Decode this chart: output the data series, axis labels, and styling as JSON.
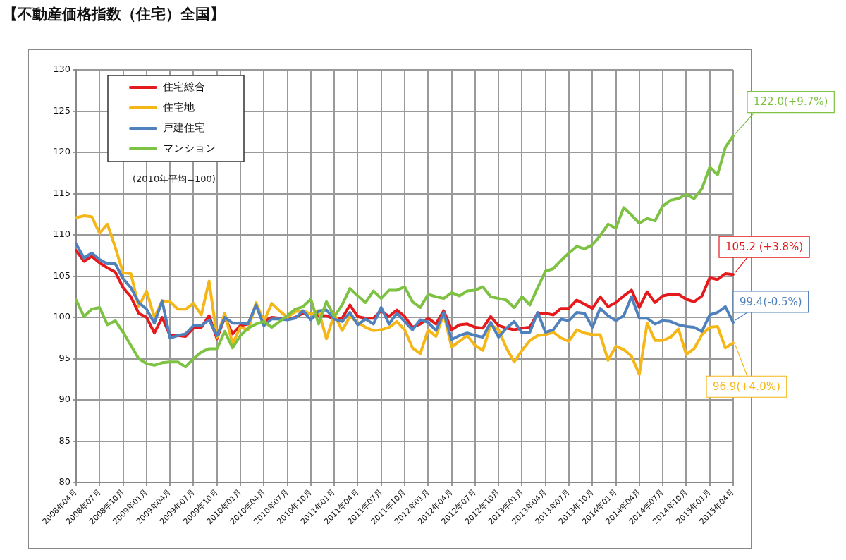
{
  "chart_data": {
    "type": "line",
    "title": "【不動産価格指数（住宅）全国】",
    "categories": [
      "2008年04月",
      null,
      null,
      "2008年07月",
      null,
      null,
      "2008年10月",
      null,
      null,
      "2009年01月",
      null,
      null,
      "2009年04月",
      null,
      null,
      "2009年07月",
      null,
      null,
      "2009年10月",
      null,
      null,
      "2010年01月",
      null,
      null,
      "2010年04月",
      null,
      null,
      "2010年07月",
      null,
      null,
      "2010年10月",
      null,
      null,
      "2011年01月",
      null,
      null,
      "2011年04月",
      null,
      null,
      "2011年07月",
      null,
      null,
      "2011年10月",
      null,
      null,
      "2012年01月",
      null,
      null,
      "2012年04月",
      null,
      null,
      "2012年07月",
      null,
      null,
      "2012年10月",
      null,
      null,
      "2013年01月",
      null,
      null,
      "2013年04月",
      null,
      null,
      "2013年07月",
      null,
      null,
      "2013年10月",
      null,
      null,
      "2014年01月",
      null,
      null,
      "2014年04月",
      null,
      null,
      "2014年07月",
      null,
      null,
      "2014年10月",
      null,
      null,
      "2015年01月",
      null,
      null,
      "2015年04月"
    ],
    "series": [
      {
        "name": "住宅総合",
        "color": "#e41a1c",
        "values": [
          108.1,
          106.8,
          107.4,
          106.6,
          106.0,
          105.5,
          103.6,
          102.5,
          100.5,
          100.0,
          98.1,
          100.0,
          97.8,
          97.8,
          97.7,
          98.7,
          98.8,
          100.2,
          97.4,
          100.0,
          98.0,
          99.0,
          99.2,
          101.5,
          99.5,
          100.0,
          99.9,
          99.8,
          100.0,
          100.5,
          100.5,
          100.2,
          100.2,
          99.8,
          99.9,
          101.5,
          100.1,
          99.9,
          99.9,
          100.8,
          100.1,
          100.9,
          100.1,
          98.8,
          99.2,
          99.9,
          99.2,
          100.8,
          98.5,
          99.1,
          99.2,
          98.8,
          98.7,
          100.1,
          99.0,
          98.7,
          98.5,
          98.7,
          98.8,
          100.5,
          100.5,
          100.3,
          101.1,
          101.1,
          102.1,
          101.6,
          101.1,
          102.5,
          101.3,
          101.8,
          102.6,
          103.3,
          101.2,
          103.1,
          101.8,
          102.6,
          102.8,
          102.8,
          102.2,
          101.9,
          102.6,
          104.8,
          104.6,
          105.3,
          105.2
        ]
      },
      {
        "name": "住宅地",
        "color": "#f5b718",
        "values": [
          112.1,
          112.3,
          112.2,
          110.2,
          111.3,
          108.5,
          105.4,
          105.3,
          101.3,
          103.2,
          100.0,
          102.0,
          101.9,
          101.0,
          101.0,
          101.7,
          100.3,
          104.4,
          97.6,
          100.5,
          96.8,
          98.8,
          98.5,
          101.8,
          99.5,
          101.7,
          100.8,
          100.0,
          100.7,
          100.8,
          100.4,
          100.8,
          97.4,
          100.4,
          98.4,
          100.1,
          99.4,
          98.8,
          98.4,
          98.5,
          98.8,
          99.5,
          98.5,
          96.3,
          95.6,
          98.5,
          97.7,
          100.4,
          96.4,
          97.1,
          97.8,
          96.6,
          96.0,
          99.1,
          98.5,
          96.3,
          94.6,
          96.0,
          97.2,
          97.8,
          97.9,
          98.2,
          97.5,
          97.1,
          98.5,
          98.1,
          97.9,
          97.9,
          94.8,
          96.5,
          96.1,
          95.3,
          93.1,
          99.3,
          97.2,
          97.2,
          97.6,
          98.6,
          95.5,
          96.2,
          97.9,
          98.8,
          98.9,
          96.3,
          96.9
        ]
      },
      {
        "name": "戸建住宅",
        "color": "#4f81bd",
        "values": [
          108.9,
          107.2,
          107.8,
          107.0,
          106.5,
          106.5,
          104.7,
          103.6,
          101.8,
          101.0,
          99.3,
          102.0,
          97.5,
          97.8,
          98.0,
          99.0,
          99.0,
          99.7,
          97.8,
          100.0,
          99.3,
          99.3,
          99.2,
          101.5,
          99.0,
          99.8,
          99.8,
          99.7,
          99.9,
          100.8,
          99.7,
          100.8,
          100.9,
          99.8,
          99.5,
          100.6,
          99.1,
          99.8,
          99.2,
          101.2,
          99.2,
          100.5,
          99.5,
          98.5,
          99.7,
          99.4,
          98.4,
          100.6,
          97.3,
          97.8,
          98.1,
          97.8,
          97.6,
          99.4,
          97.6,
          98.7,
          99.5,
          98.1,
          98.2,
          100.6,
          98.2,
          98.5,
          99.8,
          99.6,
          100.6,
          100.5,
          98.8,
          101.1,
          100.2,
          99.6,
          100.2,
          102.5,
          99.9,
          99.9,
          99.2,
          99.6,
          99.5,
          99.1,
          98.9,
          98.8,
          98.3,
          100.3,
          100.6,
          101.3,
          99.4
        ]
      },
      {
        "name": "マンション",
        "color": "#7dc243",
        "values": [
          102.1,
          100.1,
          101.0,
          101.2,
          99.1,
          99.6,
          98.2,
          96.6,
          95.0,
          94.4,
          94.2,
          94.5,
          94.6,
          94.6,
          94.0,
          95.0,
          95.8,
          96.2,
          96.2,
          98.3,
          96.3,
          97.8,
          98.7,
          99.2,
          99.5,
          98.8,
          99.5,
          100.2,
          101.0,
          101.3,
          102.2,
          99.2,
          101.9,
          100.1,
          101.5,
          103.5,
          102.6,
          101.8,
          103.2,
          102.3,
          103.3,
          103.3,
          103.7,
          101.9,
          101.2,
          102.8,
          102.5,
          102.3,
          103.0,
          102.6,
          103.2,
          103.3,
          103.7,
          102.5,
          102.3,
          102.1,
          101.2,
          102.5,
          101.5,
          103.6,
          105.6,
          105.9,
          106.9,
          107.8,
          108.6,
          108.3,
          108.8,
          109.9,
          111.3,
          110.8,
          113.3,
          112.4,
          111.4,
          112.0,
          111.7,
          113.5,
          114.2,
          114.4,
          114.9,
          114.4,
          115.6,
          118.2,
          117.3,
          120.6,
          122.0
        ]
      }
    ],
    "ylim": [
      80,
      130
    ],
    "yticks": [
      80,
      85,
      90,
      95,
      100,
      105,
      110,
      115,
      120,
      125,
      130
    ],
    "grid": true,
    "legend": "top left",
    "marker": "none",
    "line_style": "solid",
    "annotations": [
      {
        "text": "122.0(+9.7%)",
        "x": "2015年04月",
        "y": 122.0
      },
      {
        "text": "105.2 (+3.8%)",
        "x": "2015年04月",
        "y": 105.2
      },
      {
        "text": "99.4(-0.5%)",
        "x": "2015年04月",
        "y": 99.4
      },
      {
        "text": "96.9(+4.0%)",
        "x": "2015年04月",
        "y": 96.9
      },
      "(2010年平均=100)"
    ]
  }
}
